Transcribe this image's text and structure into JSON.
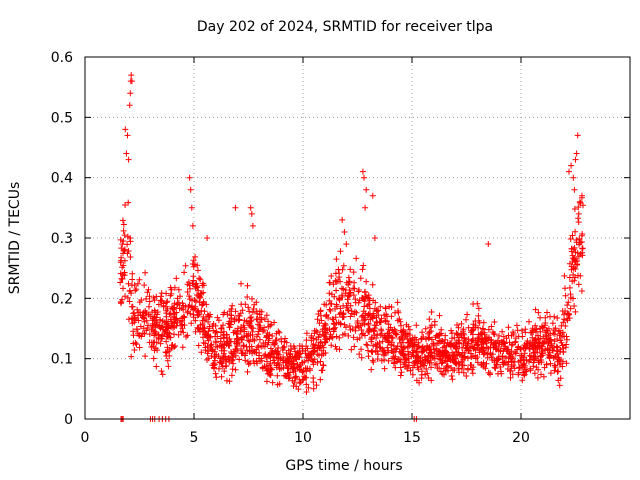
{
  "chart_data": {
    "type": "scatter",
    "title": "Day 202 of 2024, SRMTID for receiver tlpa",
    "xlabel": "GPS time / hours",
    "ylabel": "SRMTID / TECUs",
    "xlim": [
      0,
      25
    ],
    "ylim": [
      0,
      0.6
    ],
    "xticks": [
      0,
      5,
      10,
      15,
      20
    ],
    "yticks": [
      0,
      0.1,
      0.2,
      0.3,
      0.4,
      0.5,
      0.6
    ],
    "xtick_labels": [
      "0",
      "5",
      "10",
      "15",
      "20"
    ],
    "ytick_labels": [
      "0",
      "0.1",
      "0.2",
      "0.3",
      "0.4",
      "0.5",
      "0.6"
    ],
    "grid": true,
    "marker": "+",
    "color": "#ff0000",
    "series": [
      {
        "name": "SRMTID",
        "envelope": {
          "hours": [
            1.6,
            1.8,
            2.0,
            2.2,
            2.5,
            3.0,
            3.5,
            4.0,
            4.5,
            4.8,
            5.0,
            5.5,
            6.0,
            6.5,
            7.0,
            7.5,
            8.0,
            8.5,
            9.0,
            9.5,
            10.0,
            10.5,
            11.0,
            11.5,
            12.0,
            12.5,
            13.0,
            13.5,
            14.0,
            14.5,
            15.0,
            15.5,
            16.0,
            16.5,
            17.0,
            17.5,
            18.0,
            18.5,
            19.0,
            19.5,
            20.0,
            20.5,
            21.0,
            21.5,
            21.8,
            22.0,
            22.3,
            22.5,
            22.7,
            22.9
          ],
          "median": [
            0.22,
            0.3,
            0.27,
            0.16,
            0.17,
            0.16,
            0.15,
            0.16,
            0.17,
            0.19,
            0.21,
            0.15,
            0.11,
            0.12,
            0.14,
            0.15,
            0.14,
            0.11,
            0.1,
            0.09,
            0.09,
            0.11,
            0.15,
            0.18,
            0.2,
            0.19,
            0.17,
            0.14,
            0.13,
            0.12,
            0.11,
            0.11,
            0.12,
            0.11,
            0.11,
            0.12,
            0.13,
            0.12,
            0.11,
            0.11,
            0.1,
            0.12,
            0.13,
            0.12,
            0.11,
            0.15,
            0.22,
            0.26,
            0.3,
            0.32
          ],
          "spread": [
            0.07,
            0.1,
            0.12,
            0.06,
            0.06,
            0.06,
            0.06,
            0.06,
            0.06,
            0.07,
            0.07,
            0.06,
            0.05,
            0.05,
            0.06,
            0.07,
            0.06,
            0.05,
            0.04,
            0.03,
            0.04,
            0.05,
            0.06,
            0.07,
            0.07,
            0.07,
            0.07,
            0.05,
            0.05,
            0.05,
            0.04,
            0.04,
            0.05,
            0.04,
            0.04,
            0.05,
            0.05,
            0.04,
            0.04,
            0.04,
            0.04,
            0.04,
            0.05,
            0.05,
            0.05,
            0.07,
            0.08,
            0.09,
            0.08,
            0.07
          ]
        },
        "peaks": [
          {
            "x": 1.85,
            "y": 0.48
          },
          {
            "x": 1.9,
            "y": 0.44
          },
          {
            "x": 2.0,
            "y": 0.43
          },
          {
            "x": 2.05,
            "y": 0.52
          },
          {
            "x": 2.08,
            "y": 0.54
          },
          {
            "x": 2.1,
            "y": 0.56
          },
          {
            "x": 2.12,
            "y": 0.57
          },
          {
            "x": 2.15,
            "y": 0.56
          },
          {
            "x": 1.95,
            "y": 0.47
          },
          {
            "x": 4.8,
            "y": 0.4
          },
          {
            "x": 4.85,
            "y": 0.38
          },
          {
            "x": 4.9,
            "y": 0.35
          },
          {
            "x": 4.95,
            "y": 0.32
          },
          {
            "x": 5.6,
            "y": 0.3
          },
          {
            "x": 6.9,
            "y": 0.35
          },
          {
            "x": 7.6,
            "y": 0.35
          },
          {
            "x": 7.65,
            "y": 0.34
          },
          {
            "x": 7.7,
            "y": 0.32
          },
          {
            "x": 12.75,
            "y": 0.41
          },
          {
            "x": 12.8,
            "y": 0.4
          },
          {
            "x": 12.9,
            "y": 0.38
          },
          {
            "x": 12.85,
            "y": 0.35
          },
          {
            "x": 13.2,
            "y": 0.37
          },
          {
            "x": 13.3,
            "y": 0.3
          },
          {
            "x": 11.8,
            "y": 0.33
          },
          {
            "x": 11.9,
            "y": 0.31
          },
          {
            "x": 18.5,
            "y": 0.29
          },
          {
            "x": 22.6,
            "y": 0.47
          },
          {
            "x": 22.55,
            "y": 0.44
          },
          {
            "x": 22.5,
            "y": 0.43
          },
          {
            "x": 22.3,
            "y": 0.42
          },
          {
            "x": 22.2,
            "y": 0.41
          },
          {
            "x": 22.4,
            "y": 0.4
          },
          {
            "x": 22.45,
            "y": 0.38
          },
          {
            "x": 22.7,
            "y": 0.36
          },
          {
            "x": 22.8,
            "y": 0.37
          },
          {
            "x": 22.65,
            "y": 0.34
          }
        ],
        "zeros": [
          {
            "x": 1.65,
            "y": 0
          },
          {
            "x": 1.7,
            "y": 0
          },
          {
            "x": 1.75,
            "y": 0
          },
          {
            "x": 3.0,
            "y": 0
          },
          {
            "x": 3.1,
            "y": 0
          },
          {
            "x": 3.2,
            "y": 0
          },
          {
            "x": 3.4,
            "y": 0
          },
          {
            "x": 3.55,
            "y": 0
          },
          {
            "x": 3.7,
            "y": 0
          },
          {
            "x": 3.85,
            "y": 0
          },
          {
            "x": 15.1,
            "y": 0
          },
          {
            "x": 15.2,
            "y": 0
          }
        ],
        "point_count": 2200
      }
    ]
  }
}
